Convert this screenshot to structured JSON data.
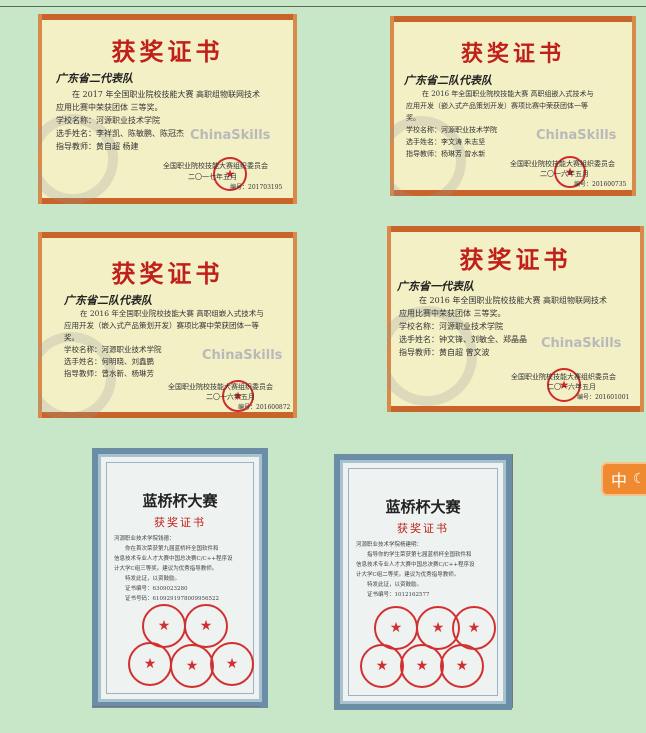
{
  "certificates": [
    {
      "title": "获奖证书",
      "team": "广东省二代表队",
      "body": [
        "在 2017 年全国职业院校技能大赛 高职组物联网技术",
        "应用比赛中荣获团体 三等奖。",
        "学校名称：河源职业技术学院",
        "选手姓名：李祥凯、陈敏鹏、陈冠杰",
        "指导教师：黄自超 杨建"
      ],
      "brand": "ChinaSkills",
      "org": "全国职业院校技能大赛组织委员会",
      "date": "二〇一七年五月",
      "number": "编号：201703195"
    },
    {
      "title": "获奖证书",
      "team": "广东省二队代表队",
      "body": [
        "在 2016 年全国职业院校技能大赛 高职组嵌入式技术与",
        "应用开发（嵌入式产品策划开发）赛项比赛中荣获团体一等",
        "奖。",
        "学校名称：河源职业技术学院",
        "选手姓名：李文涛 朱志坚",
        "指导教师：杨琳芳 曾水新"
      ],
      "brand": "ChinaSkills",
      "org": "全国职业院校技能大赛组织委员会",
      "date": "二〇一六年五月",
      "number": "编号：201600735"
    },
    {
      "title": "获奖证书",
      "team": "广东省二队代表队",
      "body": [
        "在 2016 年全国职业院校技能大赛 高职组嵌入式技术与",
        "应用开发（嵌入式产品策划开发）赛项比赛中荣获团体一等",
        "奖。",
        "学校名称：河源职业技术学院",
        "选手姓名：何明晓、刘鑫鹏",
        "指导教师：曾水新、杨琳芳"
      ],
      "brand": "ChinaSkills",
      "org": "全国职业院校技能大赛组织委员会",
      "date": "二〇一六年五月",
      "number": "编号：201600872"
    },
    {
      "title": "获奖证书",
      "team": "广东省一代表队",
      "body": [
        "在 2016 年全国职业院校技能大赛 高职组物联网技术",
        "应用比赛中荣获团体 三等奖。",
        "学校名称：河源职业技术学院",
        "选手姓名：钟文锋、刘敏全、郑晶晶",
        "指导教师：黄自超 曾文波"
      ],
      "brand": "ChinaSkills",
      "org": "全国职业院校技能大赛组织委员会",
      "date": "二〇一六年五月",
      "number": "编号：201601001"
    }
  ],
  "blue_certificates": [
    {
      "title": "蓝桥杯大赛",
      "subtitle": "获奖证书",
      "body": [
        "河源职业技术学院钱德：",
        "　　你在首次荣获第九届蓝桥杯全国软件和",
        "信息技术专业人才大赛中国总决赛C/C++程序设",
        "计大学C组三等奖。建议为优秀指导教师。",
        "　　特发此证，以资鼓励。",
        "　　证书编号：6309023280",
        "　　证书号码：6109291978009956522"
      ]
    },
    {
      "title": "蓝桥杯大赛",
      "subtitle": "获奖证书",
      "body": [
        "河源职业技术学院杨建明：",
        "　　指导你的学生荣获第七届蓝桥杯全国软件和",
        "信息技术专业人才大赛中国总决赛C/C++程序设",
        "计大学C组二等奖。建议为优秀指导教师。",
        "　　特发此证，以资鼓励。",
        "　　证书编号：1012162577"
      ]
    }
  ],
  "language_button": {
    "label": "中",
    "icon": "moon-icon",
    "color": "#f08a30"
  }
}
